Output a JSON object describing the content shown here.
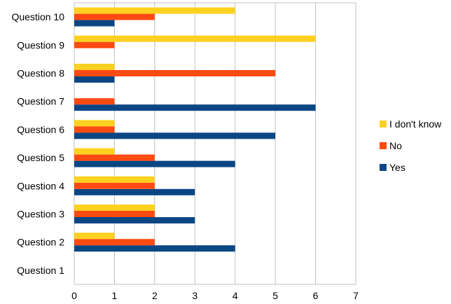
{
  "chart_data": {
    "type": "bar",
    "orientation": "horizontal",
    "categories": [
      "Question 1",
      "Question 2",
      "Question 3",
      "Question 4",
      "Question 5",
      "Question 6",
      "Question 7",
      "Question 8",
      "Question 9",
      "Question 10"
    ],
    "series": [
      {
        "name": "Yes",
        "color": "#0a4684",
        "values": [
          0,
          4,
          3,
          3,
          4,
          5,
          6,
          1,
          0,
          1
        ]
      },
      {
        "name": "No",
        "color": "#ff4a12",
        "values": [
          0,
          2,
          2,
          2,
          2,
          1,
          1,
          5,
          1,
          2
        ]
      },
      {
        "name": "I don't know",
        "color": "#ffd11f",
        "values": [
          0,
          1,
          2,
          2,
          1,
          1,
          0,
          1,
          6,
          4
        ]
      }
    ],
    "xlim": [
      0,
      7
    ],
    "xticks": [
      "0",
      "1",
      "2",
      "3",
      "4",
      "5",
      "6",
      "7"
    ],
    "grid": true,
    "legend": {
      "position": "right",
      "order": [
        "I don't know",
        "No",
        "Yes"
      ]
    }
  }
}
